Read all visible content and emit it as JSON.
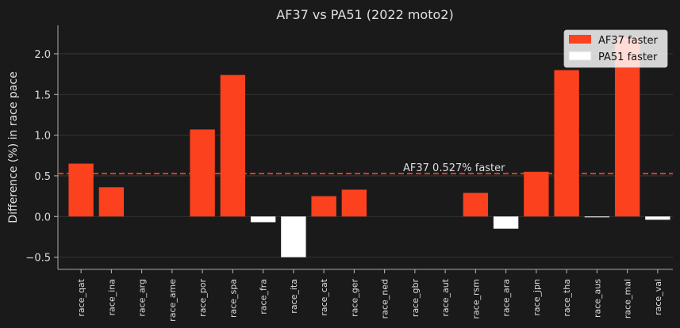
{
  "chart_data": {
    "type": "bar",
    "title": "AF37 vs PA51 (2022 moto2)",
    "xlabel": "",
    "ylabel": "Difference (%) in race pace",
    "ylim": [
      -0.65,
      2.35
    ],
    "yticks": [
      -0.5,
      0.0,
      0.5,
      1.0,
      1.5,
      2.0
    ],
    "ytick_labels": [
      "−0.5",
      "0.0",
      "0.5",
      "1.0",
      "1.5",
      "2.0"
    ],
    "grid": true,
    "legend_position": "top-right",
    "categories": [
      "race_qat",
      "race_ina",
      "race_arg",
      "race_ame",
      "race_por",
      "race_spa",
      "race_fra",
      "race_ita",
      "race_cat",
      "race_ger",
      "race_ned",
      "race_gbr",
      "race_aut",
      "race_rsm",
      "race_ara",
      "race_jpn",
      "race_tha",
      "race_aus",
      "race_mal",
      "race_val"
    ],
    "values": [
      0.65,
      0.36,
      null,
      null,
      1.07,
      1.74,
      -0.07,
      -0.5,
      0.25,
      0.33,
      null,
      null,
      null,
      0.29,
      -0.15,
      0.55,
      1.8,
      -0.01,
      2.2,
      -0.04
    ],
    "legend": [
      {
        "label": "AF37 faster",
        "color": "#fc411e"
      },
      {
        "label": "PA51 faster",
        "color": "#ffffff"
      }
    ],
    "reference_line": {
      "y": 0.527,
      "color": "#fc411e",
      "style": "dashed",
      "label": "AF37 0.527% faster"
    },
    "colors": {
      "positive": "#fc411e",
      "negative": "#ffffff",
      "background": "#1a1a1a",
      "grid": "#3a3a3a"
    }
  }
}
